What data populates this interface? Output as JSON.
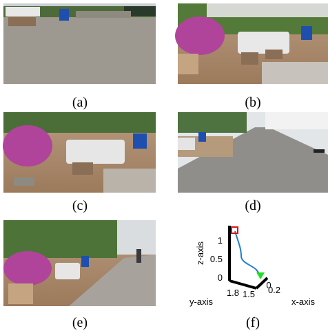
{
  "panels": [
    {
      "label": "(a)"
    },
    {
      "label": "(b)"
    },
    {
      "label": "(c)"
    },
    {
      "label": "(d)"
    },
    {
      "label": "(e)"
    },
    {
      "label": "(f)"
    }
  ],
  "plot": {
    "z_label": "z-axis",
    "y_label": "y-axis",
    "x_label": "x-axis",
    "z_ticks": [
      "1",
      "0.5",
      "0"
    ],
    "y_ticks": [
      "1.8",
      "1.5"
    ],
    "x_ticks": [
      "0",
      "0.2"
    ]
  }
}
